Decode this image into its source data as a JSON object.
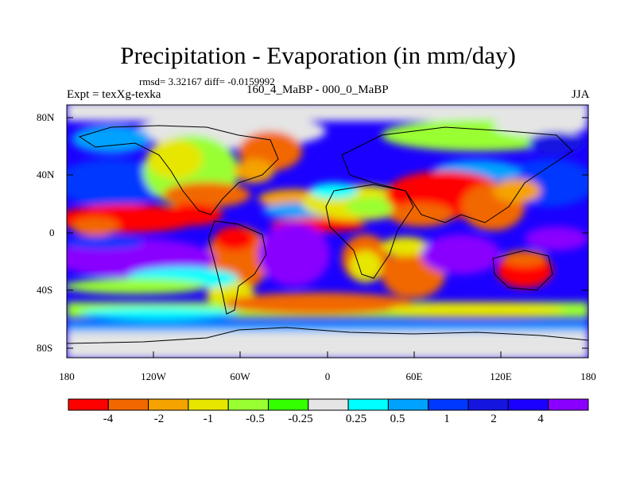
{
  "title": "Precipitation - Evaporation (in mm/day)",
  "stats_text": "rmsd= 3.32167 diff= -0.0159992",
  "experiment_label": "Expt = texXg-texka",
  "periods_label": "160_4_MaBP - 000_0_MaBP",
  "season_label": "JJA",
  "map": {
    "y_ticks": [
      "80N",
      "40N",
      "0",
      "40S",
      "80S"
    ],
    "x_ticks": [
      "180",
      "120W",
      "60W",
      "0",
      "60E",
      "120E",
      "180"
    ]
  },
  "colorbar": {
    "colors": [
      "#ff0000",
      "#f26800",
      "#f5a300",
      "#e6e600",
      "#99ff33",
      "#33ff00",
      "#e5e5e5",
      "#00ffff",
      "#00a2ff",
      "#0038ff",
      "#1515e0",
      "#1b00ff",
      "#8a00ff"
    ],
    "tick_labels": [
      "-4",
      "-2",
      "-1",
      "-0.5",
      "-0.25",
      "0.25",
      "0.5",
      "1",
      "2",
      "4"
    ]
  },
  "chart_data": {
    "type": "heatmap",
    "title": "Precipitation - Evaporation (in mm/day)",
    "subtitle": "rmsd= 3.32167 diff= -0.0159992",
    "xlabel": "",
    "ylabel": "",
    "x_tick_labels": [
      "180",
      "120W",
      "60W",
      "0",
      "60E",
      "120E",
      "180"
    ],
    "y_tick_labels": [
      "80N",
      "40N",
      "0",
      "40S",
      "80S"
    ],
    "xlim": [
      -180,
      180
    ],
    "ylim": [
      -90,
      90
    ],
    "colorbar_levels": [
      -4,
      -2,
      -1,
      -0.5,
      -0.25,
      0.25,
      0.5,
      1,
      2,
      4
    ],
    "colorbar_colors": [
      "#ff0000",
      "#f26800",
      "#f5a300",
      "#e6e600",
      "#99ff33",
      "#33ff00",
      "#e5e5e5",
      "#00ffff",
      "#00a2ff",
      "#0038ff",
      "#1515e0",
      "#1b00ff",
      "#8a00ff"
    ],
    "units": "mm/day"
  }
}
